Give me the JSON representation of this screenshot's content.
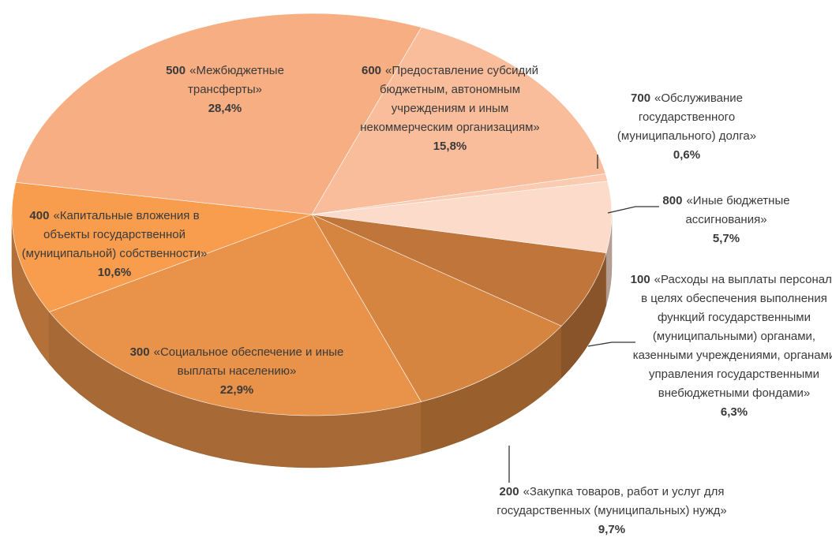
{
  "chart_data": {
    "type": "pie3d",
    "codes": [
      "100",
      "200",
      "300",
      "400",
      "500",
      "600",
      "700",
      "800"
    ],
    "categories": [
      "«Расходы на выплаты персоналу в целях обеспечения выполнения функций государственными (муниципальными) органами, казенными учреждениями, органами управления государственными внебюджетными фондами»",
      "«Закупка товаров, работ и услуг для государственных (муниципальных) нужд»",
      "«Социальное обеспечение и иные выплаты населению»",
      "«Капитальные вложения в объекты государственной (муниципальной) собственности»",
      "«Межбюджетные трансферты»",
      "«Предоставление субсидий бюджетным, автономным учреждениям и иным некоммерческим организациям»",
      "«Обслуживание государственного (муниципального) долга»",
      "«Иные бюджетные ассигнования»"
    ],
    "values": [
      6.3,
      9.7,
      22.9,
      10.6,
      28.4,
      15.8,
      0.6,
      5.7
    ],
    "value_labels": [
      "6,3%",
      "9,7%",
      "22,9%",
      "10,6%",
      "28,4%",
      "15,8%",
      "0,6%",
      "5,7%"
    ],
    "colors": [
      "#c0753a",
      "#d5853f",
      "#e8924a",
      "#f89c4e",
      "#f7ae82",
      "#f9bd9c",
      "#fbcbb1",
      "#fddbcb"
    ]
  }
}
